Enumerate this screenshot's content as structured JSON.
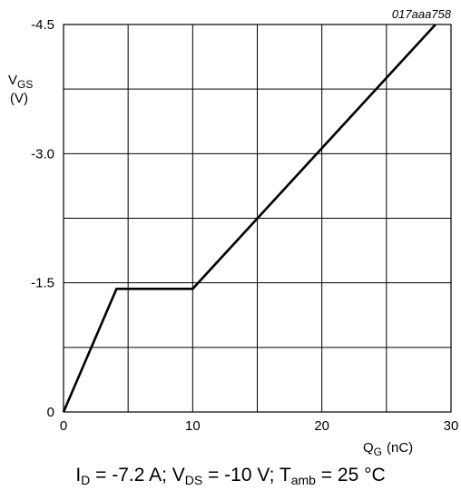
{
  "chart_data": {
    "type": "line",
    "reference_label": "017aaa758",
    "ylabel": {
      "main": "V",
      "sub": "GS",
      "unit": "(V)"
    },
    "xlabel": {
      "main": "Q",
      "sub": "G",
      "unit": "(nC)"
    },
    "x_ticks": [
      {
        "value": 0,
        "label": "0"
      },
      {
        "value": 10,
        "label": "10"
      },
      {
        "value": 20,
        "label": "20"
      },
      {
        "value": 30,
        "label": "30"
      }
    ],
    "y_ticks": [
      {
        "value": 0,
        "label": "0"
      },
      {
        "value": -1.5,
        "label": "-1.5"
      },
      {
        "value": -3.0,
        "label": "-3.0"
      },
      {
        "value": -4.5,
        "label": "-4.5"
      }
    ],
    "xlim": [
      0,
      30
    ],
    "ylim": [
      0,
      -4.5
    ],
    "x_grid": [
      0,
      5,
      10,
      15,
      20,
      25,
      30
    ],
    "y_grid": [
      0,
      -0.75,
      -1.5,
      -2.25,
      -3.0,
      -3.75,
      -4.5
    ],
    "grid": true,
    "series": [
      {
        "x": [
          0,
          4.1,
          10.0,
          28.8
        ],
        "y": [
          0,
          -1.43,
          -1.43,
          -4.5
        ]
      }
    ],
    "line_color": "#000000",
    "grid_color": "#000000"
  },
  "caption": {
    "i_main": "I",
    "i_sub": "D",
    "i_value": " = -7.2 A; ",
    "v_main": "V",
    "v_sub": "DS",
    "v_value": " = -10 V; ",
    "t_main": "T",
    "t_sub": "amb",
    "t_value": " = 25 °C"
  }
}
